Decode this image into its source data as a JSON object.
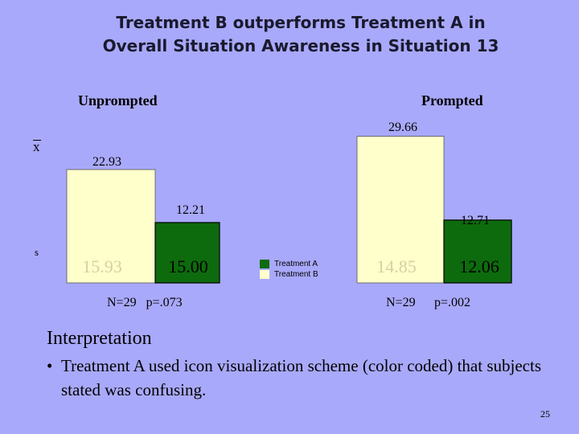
{
  "title_line1": "Treatment B outperforms Treatment A in",
  "title_line2": "Overall Situation Awareness in Situation 13",
  "stat_labels": {
    "mean": "x",
    "sd": "s"
  },
  "colors": {
    "treatment_a": "#0d6b0d",
    "treatment_b": "#ffffcc",
    "background": "#a9a9fb"
  },
  "legend": [
    "Treatment A",
    "Treatment B"
  ],
  "chart_data": [
    {
      "type": "bar",
      "panel": "Unprompted",
      "series": [
        {
          "name": "Treatment B",
          "mean": 22.93,
          "mean_label": "22.93",
          "sd": "15.93"
        },
        {
          "name": "Treatment A",
          "mean": 12.21,
          "mean_label": "12.21",
          "sd": "15.00"
        }
      ],
      "footnote": "N=29   p=.073"
    },
    {
      "type": "bar",
      "panel": "Prompted",
      "series": [
        {
          "name": "Treatment B",
          "mean": 29.66,
          "mean_label": "29.66",
          "sd": "14.85"
        },
        {
          "name": "Treatment A",
          "mean": 12.71,
          "mean_label": "12.71",
          "sd": "12.06"
        }
      ],
      "footnote_n": "N=29",
      "footnote_p": "p=.002"
    }
  ],
  "interpretation": {
    "heading": "Interpretation",
    "bullet": "•",
    "text": "Treatment A used icon visualization scheme (color coded) that subjects stated was confusing."
  },
  "page_number": "25"
}
